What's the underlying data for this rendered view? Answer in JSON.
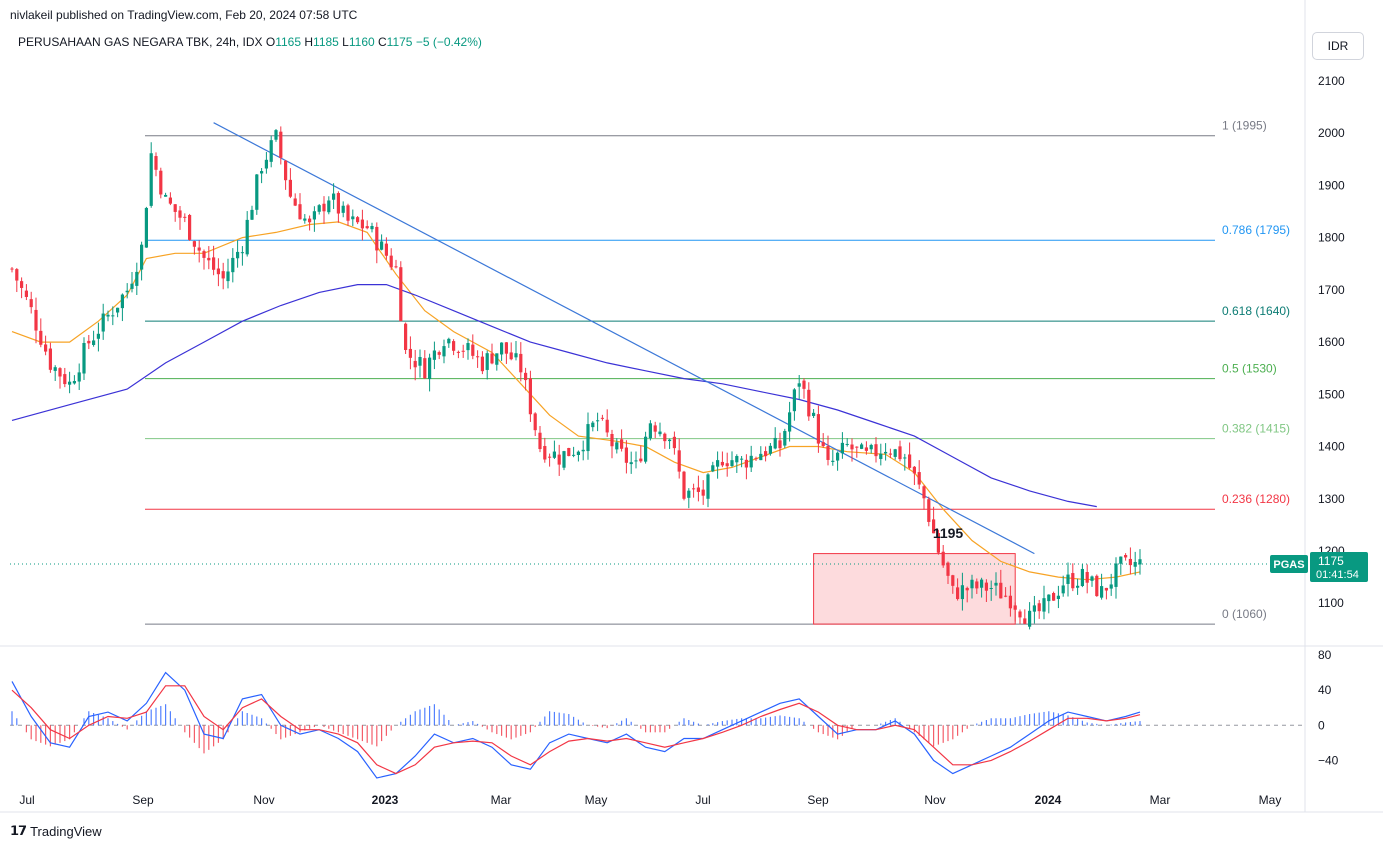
{
  "header": {
    "published": "nivlakeil published on TradingView.com, Feb 20, 2024 07:58 UTC",
    "symbol_line": "PERUSAHAAN GAS NEGARA TBK, 24h, IDX",
    "ohlc": [
      {
        "label": "O",
        "value": "1165"
      },
      {
        "label": "H",
        "value": "1185"
      },
      {
        "label": "L",
        "value": "1160"
      },
      {
        "label": "C",
        "value": "1175"
      }
    ],
    "change": "−5 (−0.42%)"
  },
  "currency": "IDR",
  "brand": "TradingView",
  "colors": {
    "up": "#089981",
    "down": "#f23645",
    "ma_fast": "#f7a325",
    "ma_slow": "#3b32d6",
    "trendline": "#3c78d8",
    "macd": "#2962ff",
    "signal": "#f23645"
  },
  "chart_data": [
    {
      "type": "candlestick",
      "title": "PERUSAHAAN GAS NEGARA TBK, 24h, IDX",
      "x_ticks": [
        "Jul",
        "Sep",
        "Nov",
        "2023",
        "Mar",
        "May",
        "Jul",
        "Sep",
        "Nov",
        "2024",
        "Mar",
        "May"
      ],
      "y_ticks": [
        2100,
        2000,
        1900,
        1800,
        1700,
        1600,
        1500,
        1400,
        1300,
        1200,
        1100
      ],
      "ylim": [
        1020,
        2140
      ],
      "last_price": {
        "ticker": "PGAS",
        "value": 1175,
        "countdown": "01:41:54"
      },
      "price_path": [
        [
          0,
          1740
        ],
        [
          4,
          1660
        ],
        [
          8,
          1560
        ],
        [
          12,
          1520
        ],
        [
          16,
          1600
        ],
        [
          20,
          1650
        ],
        [
          24,
          1700
        ],
        [
          27,
          1780
        ],
        [
          29,
          1960
        ],
        [
          32,
          1870
        ],
        [
          36,
          1830
        ],
        [
          40,
          1760
        ],
        [
          44,
          1720
        ],
        [
          48,
          1790
        ],
        [
          52,
          1940
        ],
        [
          55,
          1990
        ],
        [
          58,
          1880
        ],
        [
          62,
          1820
        ],
        [
          66,
          1880
        ],
        [
          70,
          1830
        ],
        [
          74,
          1820
        ],
        [
          77,
          1780
        ],
        [
          80,
          1740
        ],
        [
          82,
          1580
        ],
        [
          86,
          1550
        ],
        [
          90,
          1610
        ],
        [
          94,
          1590
        ],
        [
          98,
          1560
        ],
        [
          102,
          1590
        ],
        [
          106,
          1550
        ],
        [
          110,
          1400
        ],
        [
          114,
          1380
        ],
        [
          118,
          1400
        ],
        [
          122,
          1450
        ],
        [
          126,
          1390
        ],
        [
          130,
          1360
        ],
        [
          133,
          1450
        ],
        [
          137,
          1420
        ],
        [
          140,
          1310
        ],
        [
          144,
          1310
        ],
        [
          148,
          1380
        ],
        [
          152,
          1370
        ],
        [
          156,
          1390
        ],
        [
          160,
          1400
        ],
        [
          164,
          1530
        ],
        [
          167,
          1450
        ],
        [
          170,
          1360
        ],
        [
          174,
          1400
        ],
        [
          178,
          1380
        ],
        [
          182,
          1400
        ],
        [
          186,
          1380
        ],
        [
          190,
          1300
        ],
        [
          193,
          1200
        ],
        [
          196,
          1120
        ],
        [
          200,
          1130
        ],
        [
          204,
          1130
        ],
        [
          208,
          1110
        ],
        [
          212,
          1070
        ],
        [
          215,
          1090
        ],
        [
          219,
          1140
        ],
        [
          223,
          1150
        ],
        [
          227,
          1120
        ],
        [
          231,
          1170
        ],
        [
          235,
          1175
        ]
      ],
      "moving_averages": [
        {
          "name": "",
          "color": "#f7a325",
          "points": [
            [
              0,
              1620
            ],
            [
              6,
              1600
            ],
            [
              12,
              1600
            ],
            [
              18,
              1640
            ],
            [
              24,
              1690
            ],
            [
              28,
              1760
            ],
            [
              34,
              1770
            ],
            [
              40,
              1770
            ],
            [
              48,
              1800
            ],
            [
              55,
              1810
            ],
            [
              62,
              1825
            ],
            [
              68,
              1830
            ],
            [
              74,
              1810
            ],
            [
              80,
              1730
            ],
            [
              86,
              1660
            ],
            [
              92,
              1620
            ],
            [
              100,
              1580
            ],
            [
              106,
              1520
            ],
            [
              112,
              1460
            ],
            [
              118,
              1420
            ],
            [
              126,
              1410
            ],
            [
              132,
              1400
            ],
            [
              138,
              1370
            ],
            [
              144,
              1350
            ],
            [
              150,
              1360
            ],
            [
              156,
              1380
            ],
            [
              162,
              1400
            ],
            [
              168,
              1400
            ],
            [
              174,
              1390
            ],
            [
              182,
              1385
            ],
            [
              188,
              1350
            ],
            [
              194,
              1280
            ],
            [
              200,
              1220
            ],
            [
              206,
              1180
            ],
            [
              212,
              1160
            ],
            [
              218,
              1150
            ],
            [
              224,
              1145
            ],
            [
              230,
              1150
            ],
            [
              235,
              1160
            ]
          ]
        },
        {
          "name": "",
          "color": "#3b32d6",
          "points": [
            [
              0,
              1450
            ],
            [
              12,
              1480
            ],
            [
              24,
              1510
            ],
            [
              32,
              1560
            ],
            [
              40,
              1600
            ],
            [
              48,
              1640
            ],
            [
              56,
              1670
            ],
            [
              64,
              1695
            ],
            [
              72,
              1710
            ],
            [
              78,
              1710
            ],
            [
              84,
              1690
            ],
            [
              92,
              1660
            ],
            [
              100,
              1630
            ],
            [
              108,
              1600
            ],
            [
              116,
              1580
            ],
            [
              124,
              1560
            ],
            [
              132,
              1545
            ],
            [
              140,
              1530
            ],
            [
              148,
              1520
            ],
            [
              156,
              1505
            ],
            [
              164,
              1490
            ],
            [
              172,
              1470
            ],
            [
              180,
              1445
            ],
            [
              188,
              1420
            ],
            [
              196,
              1380
            ],
            [
              204,
              1340
            ],
            [
              212,
              1315
            ],
            [
              220,
              1295
            ],
            [
              226,
              1285
            ]
          ]
        }
      ],
      "trendline": {
        "from": [
          42,
          2020
        ],
        "to": [
          213,
          1195
        ]
      },
      "fibonacci": [
        {
          "level": "1 (1995)",
          "value": 1995,
          "color": "#787b86"
        },
        {
          "level": "0.786 (1795)",
          "value": 1795,
          "color": "#2196f3"
        },
        {
          "level": "0.618 (1640)",
          "value": 1640,
          "color": "#0c7c74"
        },
        {
          "level": "0.5 (1530)",
          "value": 1530,
          "color": "#4caf50"
        },
        {
          "level": "0.382 (1415)",
          "value": 1415,
          "color": "#81c784"
        },
        {
          "level": "0.236 (1280)",
          "value": 1280,
          "color": "#f23645"
        },
        {
          "level": "0 (1060)",
          "value": 1060,
          "color": "#787b86"
        }
      ],
      "range_box": {
        "x_from": 167,
        "x_to": 209,
        "y_from": 1060,
        "y_to": 1195,
        "color": "#f23645"
      },
      "annotation": {
        "text": "1195",
        "x": 195,
        "y": 1225
      }
    },
    {
      "type": "line",
      "title": "",
      "y_ticks": [
        80,
        40,
        0,
        -40
      ],
      "ylim": [
        -68,
        88
      ],
      "series": [
        {
          "name": "",
          "color": "#2962ff",
          "points": [
            [
              0,
              50
            ],
            [
              4,
              10
            ],
            [
              8,
              -20
            ],
            [
              12,
              -25
            ],
            [
              16,
              10
            ],
            [
              20,
              15
            ],
            [
              24,
              5
            ],
            [
              28,
              25
            ],
            [
              32,
              60
            ],
            [
              36,
              40
            ],
            [
              40,
              -10
            ],
            [
              44,
              -15
            ],
            [
              48,
              30
            ],
            [
              52,
              35
            ],
            [
              56,
              0
            ],
            [
              60,
              -10
            ],
            [
              64,
              -5
            ],
            [
              68,
              -15
            ],
            [
              72,
              -30
            ],
            [
              76,
              -60
            ],
            [
              80,
              -55
            ],
            [
              84,
              -35
            ],
            [
              88,
              -10
            ],
            [
              92,
              -20
            ],
            [
              96,
              -15
            ],
            [
              100,
              -25
            ],
            [
              104,
              -45
            ],
            [
              108,
              -50
            ],
            [
              112,
              -20
            ],
            [
              116,
              -10
            ],
            [
              120,
              -15
            ],
            [
              124,
              -20
            ],
            [
              128,
              -10
            ],
            [
              132,
              -25
            ],
            [
              136,
              -30
            ],
            [
              140,
              -15
            ],
            [
              144,
              -15
            ],
            [
              148,
              -5
            ],
            [
              152,
              5
            ],
            [
              156,
              15
            ],
            [
              160,
              25
            ],
            [
              164,
              30
            ],
            [
              168,
              10
            ],
            [
              172,
              -10
            ],
            [
              176,
              -5
            ],
            [
              180,
              -5
            ],
            [
              184,
              5
            ],
            [
              188,
              -10
            ],
            [
              192,
              -40
            ],
            [
              196,
              -55
            ],
            [
              200,
              -45
            ],
            [
              204,
              -35
            ],
            [
              208,
              -25
            ],
            [
              212,
              -10
            ],
            [
              216,
              5
            ],
            [
              220,
              15
            ],
            [
              224,
              10
            ],
            [
              228,
              5
            ],
            [
              232,
              10
            ],
            [
              235,
              15
            ]
          ]
        },
        {
          "name": "",
          "color": "#f23645",
          "points": [
            [
              0,
              40
            ],
            [
              4,
              20
            ],
            [
              8,
              -5
            ],
            [
              12,
              -15
            ],
            [
              16,
              0
            ],
            [
              20,
              10
            ],
            [
              24,
              8
            ],
            [
              28,
              15
            ],
            [
              32,
              45
            ],
            [
              36,
              45
            ],
            [
              40,
              10
            ],
            [
              44,
              -5
            ],
            [
              48,
              20
            ],
            [
              52,
              30
            ],
            [
              56,
              10
            ],
            [
              60,
              -5
            ],
            [
              64,
              -5
            ],
            [
              68,
              -10
            ],
            [
              72,
              -20
            ],
            [
              76,
              -45
            ],
            [
              80,
              -55
            ],
            [
              84,
              -45
            ],
            [
              88,
              -25
            ],
            [
              92,
              -20
            ],
            [
              96,
              -18
            ],
            [
              100,
              -20
            ],
            [
              104,
              -35
            ],
            [
              108,
              -45
            ],
            [
              112,
              -30
            ],
            [
              116,
              -18
            ],
            [
              120,
              -15
            ],
            [
              124,
              -18
            ],
            [
              128,
              -15
            ],
            [
              132,
              -20
            ],
            [
              136,
              -25
            ],
            [
              140,
              -20
            ],
            [
              144,
              -15
            ],
            [
              148,
              -8
            ],
            [
              152,
              0
            ],
            [
              156,
              10
            ],
            [
              160,
              18
            ],
            [
              164,
              25
            ],
            [
              168,
              15
            ],
            [
              172,
              0
            ],
            [
              176,
              -5
            ],
            [
              180,
              -5
            ],
            [
              184,
              0
            ],
            [
              188,
              -5
            ],
            [
              192,
              -25
            ],
            [
              196,
              -45
            ],
            [
              200,
              -45
            ],
            [
              204,
              -40
            ],
            [
              208,
              -30
            ],
            [
              212,
              -18
            ],
            [
              216,
              -5
            ],
            [
              220,
              8
            ],
            [
              224,
              8
            ],
            [
              228,
              5
            ],
            [
              232,
              8
            ],
            [
              235,
              12
            ]
          ]
        }
      ]
    }
  ]
}
